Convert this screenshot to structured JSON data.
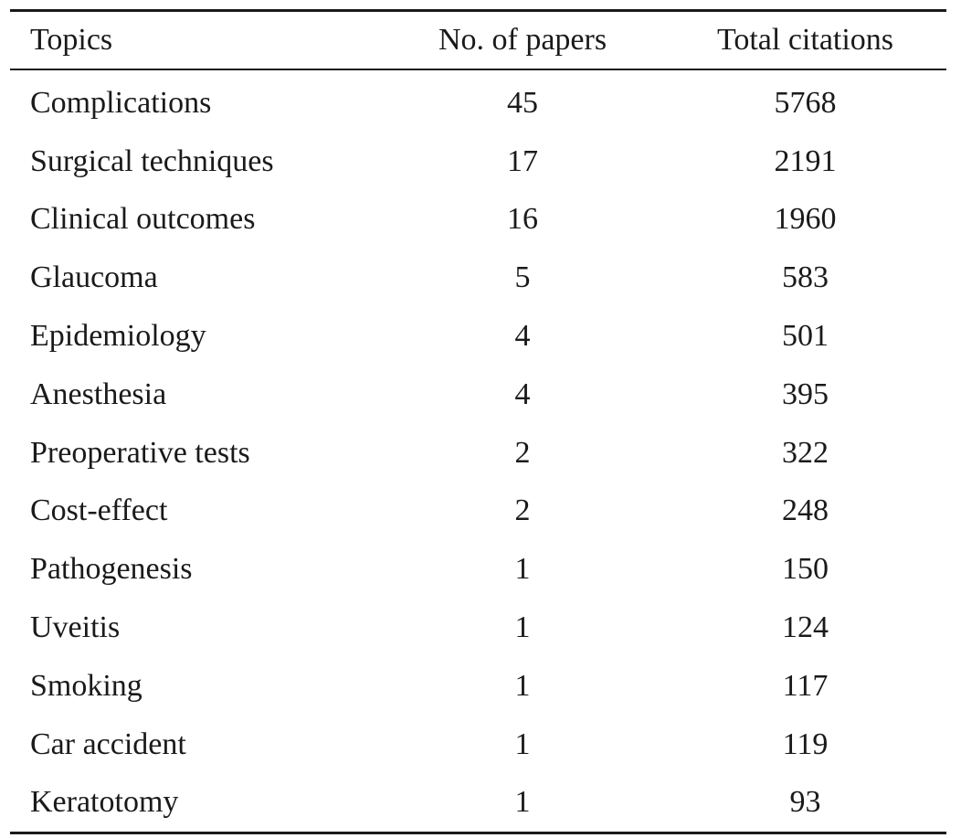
{
  "table": {
    "headers": [
      "Topics",
      "No. of papers",
      "Total citations"
    ],
    "rows": [
      [
        "Complications",
        "45",
        "5768"
      ],
      [
        "Surgical techniques",
        "17",
        "2191"
      ],
      [
        "Clinical outcomes",
        "16",
        "1960"
      ],
      [
        "Glaucoma",
        "5",
        "583"
      ],
      [
        "Epidemiology",
        "4",
        "501"
      ],
      [
        "Anesthesia",
        "4",
        "395"
      ],
      [
        "Preoperative tests",
        "2",
        "322"
      ],
      [
        "Cost-effect",
        "2",
        "248"
      ],
      [
        "Pathogenesis",
        "1",
        "150"
      ],
      [
        "Uveitis",
        "1",
        "124"
      ],
      [
        "Smoking",
        "1",
        "117"
      ],
      [
        "Car accident",
        "1",
        "119"
      ],
      [
        "Keratotomy",
        "1",
        "93"
      ]
    ]
  }
}
